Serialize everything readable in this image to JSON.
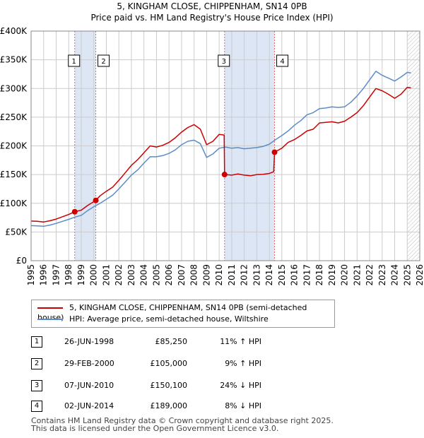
{
  "title_line1": "5, KINGHAM CLOSE, CHIPPENHAM, SN14 0PB",
  "title_line2": "Price paid vs. HM Land Registry's House Price Index (HPI)",
  "legend": {
    "property": "5, KINGHAM CLOSE, CHIPPENHAM, SN14 0PB (semi-detached house)",
    "hpi": "HPI: Average price, semi-detached house, Wiltshire"
  },
  "colors": {
    "property": "#cc0000",
    "hpi": "#5b8cc8",
    "shade": "#dde6f5",
    "grid": "#cccccc",
    "marker_line": "#e06666"
  },
  "transactions": [
    {
      "num": "1",
      "date": "26-JUN-1998",
      "price": "£85,250",
      "hpi": "11% ↑ HPI"
    },
    {
      "num": "2",
      "date": "29-FEB-2000",
      "price": "£105,000",
      "hpi": "9% ↑ HPI"
    },
    {
      "num": "3",
      "date": "07-JUN-2010",
      "price": "£150,100",
      "hpi": "24% ↓ HPI"
    },
    {
      "num": "4",
      "date": "02-JUN-2014",
      "price": "£189,000",
      "hpi": "8% ↓ HPI"
    }
  ],
  "footer_line1": "Contains HM Land Registry data © Crown copyright and database right 2025.",
  "footer_line2": "This data is licensed under the Open Government Licence v3.0.",
  "chart_data": {
    "type": "line",
    "xlim": [
      1995,
      2026
    ],
    "ylim": [
      0,
      400000
    ],
    "x_ticks": [
      1995,
      1996,
      1997,
      1998,
      1999,
      2000,
      2001,
      2002,
      2003,
      2004,
      2005,
      2006,
      2007,
      2008,
      2009,
      2010,
      2011,
      2012,
      2013,
      2014,
      2015,
      2016,
      2017,
      2018,
      2019,
      2020,
      2021,
      2022,
      2023,
      2024,
      2025,
      2026
    ],
    "y_ticks": [
      {
        "value": 0,
        "label": "£0"
      },
      {
        "value": 50000,
        "label": "£50K"
      },
      {
        "value": 100000,
        "label": "£100K"
      },
      {
        "value": 150000,
        "label": "£150K"
      },
      {
        "value": 200000,
        "label": "£200K"
      },
      {
        "value": 250000,
        "label": "£250K"
      },
      {
        "value": 300000,
        "label": "£300K"
      },
      {
        "value": 350000,
        "label": "£350K"
      },
      {
        "value": 400000,
        "label": "£400K"
      }
    ],
    "grid": true,
    "shaded_spans": [
      [
        1998.48,
        2000.16
      ],
      [
        2010.43,
        2014.42
      ]
    ],
    "hatched_from": 2025.0,
    "sales": [
      {
        "num": "1",
        "x": 1998.48,
        "y": 85250
      },
      {
        "num": "2",
        "x": 2000.16,
        "y": 105000
      },
      {
        "num": "3",
        "x": 2010.43,
        "y": 150100
      },
      {
        "num": "4",
        "x": 2014.42,
        "y": 189000
      }
    ],
    "series": [
      {
        "name": "5, KINGHAM CLOSE, CHIPPENHAM, SN14 0PB (semi-detached house)",
        "points": [
          [
            1995.0,
            69000
          ],
          [
            1995.5,
            68500
          ],
          [
            1996.0,
            67500
          ],
          [
            1996.5,
            69500
          ],
          [
            1997.0,
            72500
          ],
          [
            1997.5,
            76500
          ],
          [
            1998.0,
            80500
          ],
          [
            1998.48,
            85250
          ],
          [
            1999.0,
            88000
          ],
          [
            1999.5,
            96000
          ],
          [
            2000.16,
            105000
          ],
          [
            2000.5,
            113000
          ],
          [
            2001.0,
            121000
          ],
          [
            2001.5,
            128000
          ],
          [
            2002.0,
            140000
          ],
          [
            2002.5,
            153000
          ],
          [
            2003.0,
            166000
          ],
          [
            2003.5,
            176000
          ],
          [
            2004.0,
            188000
          ],
          [
            2004.5,
            200000
          ],
          [
            2005.0,
            198000
          ],
          [
            2005.5,
            201000
          ],
          [
            2006.0,
            206000
          ],
          [
            2006.5,
            214000
          ],
          [
            2007.0,
            224000
          ],
          [
            2007.5,
            232000
          ],
          [
            2008.0,
            237000
          ],
          [
            2008.5,
            229000
          ],
          [
            2009.0,
            202000
          ],
          [
            2009.5,
            208000
          ],
          [
            2010.0,
            220000
          ],
          [
            2010.4,
            219000
          ],
          [
            2010.43,
            150100
          ],
          [
            2011.0,
            149000
          ],
          [
            2011.5,
            151000
          ],
          [
            2012.0,
            149000
          ],
          [
            2012.5,
            148000
          ],
          [
            2013.0,
            150000
          ],
          [
            2013.5,
            150500
          ],
          [
            2014.0,
            152000
          ],
          [
            2014.35,
            155000
          ],
          [
            2014.42,
            189000
          ],
          [
            2015.0,
            196000
          ],
          [
            2015.5,
            206000
          ],
          [
            2016.0,
            211000
          ],
          [
            2016.5,
            218000
          ],
          [
            2017.0,
            226000
          ],
          [
            2017.5,
            229000
          ],
          [
            2018.0,
            240000
          ],
          [
            2018.5,
            241000
          ],
          [
            2019.0,
            242000
          ],
          [
            2019.5,
            240000
          ],
          [
            2020.0,
            243000
          ],
          [
            2020.5,
            250000
          ],
          [
            2021.0,
            258000
          ],
          [
            2021.5,
            270000
          ],
          [
            2022.0,
            285000
          ],
          [
            2022.5,
            300000
          ],
          [
            2023.0,
            296000
          ],
          [
            2023.5,
            290000
          ],
          [
            2024.0,
            283000
          ],
          [
            2024.5,
            290000
          ],
          [
            2025.0,
            302000
          ],
          [
            2025.3,
            301000
          ]
        ]
      },
      {
        "name": "HPI: Average price, semi-detached house, Wiltshire",
        "points": [
          [
            1995.0,
            61000
          ],
          [
            1995.5,
            60500
          ],
          [
            1996.0,
            60000
          ],
          [
            1996.5,
            62000
          ],
          [
            1997.0,
            65000
          ],
          [
            1997.5,
            68500
          ],
          [
            1998.0,
            72000
          ],
          [
            1998.5,
            76000
          ],
          [
            1999.0,
            79000
          ],
          [
            1999.5,
            87000
          ],
          [
            2000.0,
            94000
          ],
          [
            2000.5,
            100000
          ],
          [
            2001.0,
            107000
          ],
          [
            2001.5,
            114000
          ],
          [
            2002.0,
            125000
          ],
          [
            2002.5,
            137000
          ],
          [
            2003.0,
            149000
          ],
          [
            2003.5,
            158000
          ],
          [
            2004.0,
            170000
          ],
          [
            2004.5,
            181000
          ],
          [
            2005.0,
            181000
          ],
          [
            2005.5,
            183000
          ],
          [
            2006.0,
            187000
          ],
          [
            2006.5,
            193000
          ],
          [
            2007.0,
            202000
          ],
          [
            2007.5,
            208000
          ],
          [
            2008.0,
            210000
          ],
          [
            2008.5,
            204000
          ],
          [
            2009.0,
            180000
          ],
          [
            2009.5,
            186000
          ],
          [
            2010.0,
            196000
          ],
          [
            2010.5,
            198000
          ],
          [
            2011.0,
            196000
          ],
          [
            2011.5,
            197000
          ],
          [
            2012.0,
            195000
          ],
          [
            2012.5,
            196000
          ],
          [
            2013.0,
            197000
          ],
          [
            2013.5,
            199000
          ],
          [
            2014.0,
            203000
          ],
          [
            2014.5,
            211000
          ],
          [
            2015.0,
            218000
          ],
          [
            2015.5,
            226000
          ],
          [
            2016.0,
            236000
          ],
          [
            2016.5,
            244000
          ],
          [
            2017.0,
            254000
          ],
          [
            2017.5,
            258000
          ],
          [
            2018.0,
            265000
          ],
          [
            2018.5,
            266000
          ],
          [
            2019.0,
            268000
          ],
          [
            2019.5,
            267000
          ],
          [
            2020.0,
            268000
          ],
          [
            2020.5,
            276000
          ],
          [
            2021.0,
            287000
          ],
          [
            2021.5,
            300000
          ],
          [
            2022.0,
            315000
          ],
          [
            2022.5,
            330000
          ],
          [
            2023.0,
            323000
          ],
          [
            2023.5,
            318000
          ],
          [
            2024.0,
            313000
          ],
          [
            2024.5,
            320000
          ],
          [
            2025.0,
            328000
          ],
          [
            2025.3,
            327000
          ]
        ]
      }
    ]
  }
}
